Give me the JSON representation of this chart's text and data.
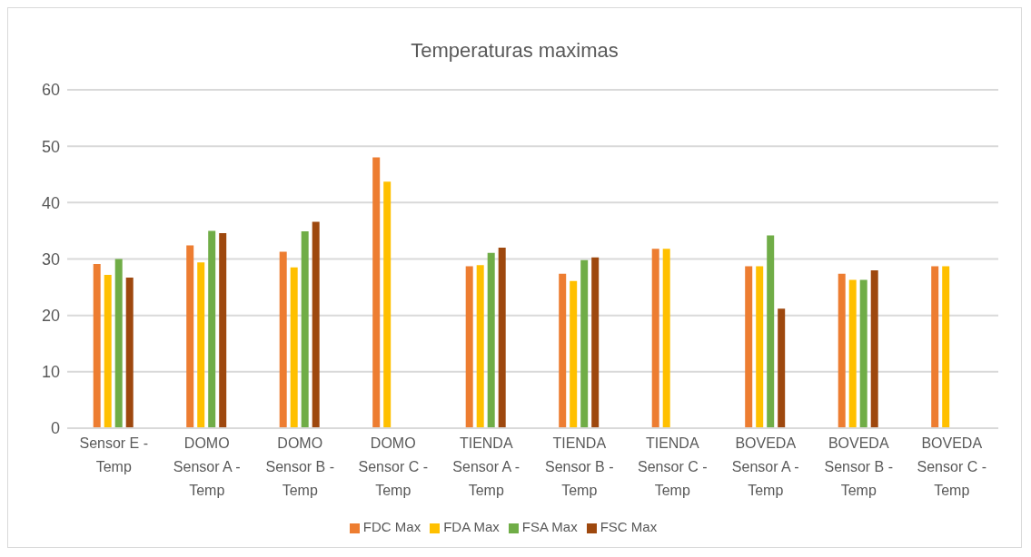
{
  "chart_data": {
    "type": "bar",
    "title": "Temperaturas maximas",
    "categories": [
      "Sensor E - Temp",
      "DOMO Sensor A - Temp",
      "DOMO Sensor B - Temp",
      "DOMO Sensor C - Temp",
      "TIENDA Sensor A - Temp",
      "TIENDA Sensor B - Temp",
      "TIENDA Sensor C - Temp",
      "BOVEDA Sensor A - Temp",
      "BOVEDA Sensor B - Temp",
      "BOVEDA Sensor C - Temp"
    ],
    "series": [
      {
        "name": "FDC Max",
        "color": "#ed7d31",
        "values": [
          29.1,
          32.4,
          31.3,
          48.0,
          28.7,
          27.4,
          31.8,
          28.7,
          27.4,
          28.7
        ]
      },
      {
        "name": "FDA Max",
        "color": "#ffc000",
        "values": [
          27.2,
          29.4,
          28.5,
          43.7,
          28.9,
          26.1,
          31.8,
          28.7,
          26.3,
          28.7
        ]
      },
      {
        "name": "FSA Max",
        "color": "#70ad47",
        "values": [
          30.0,
          35.0,
          34.9,
          null,
          31.1,
          29.8,
          null,
          34.2,
          26.3,
          null
        ]
      },
      {
        "name": "FSC Max",
        "color": "#9e480e",
        "values": [
          26.7,
          34.6,
          36.6,
          null,
          32.0,
          30.3,
          null,
          21.2,
          28.0,
          null
        ]
      }
    ],
    "ylim": [
      0,
      60
    ],
    "yticks": [
      0,
      10,
      20,
      30,
      40,
      50,
      60
    ],
    "grid": "y",
    "legend": "bottom"
  }
}
